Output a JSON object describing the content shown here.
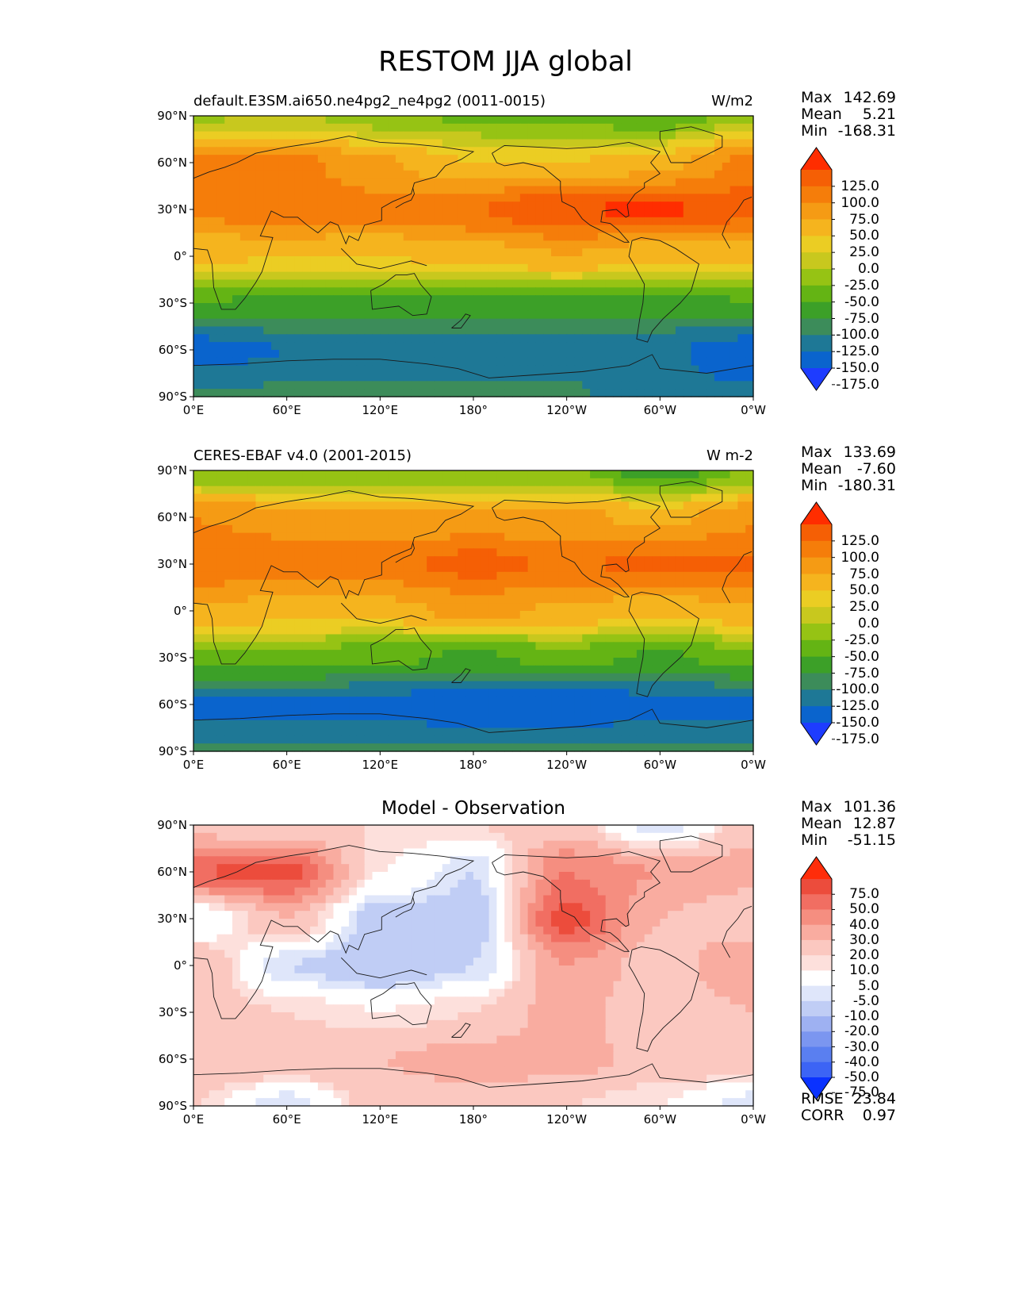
{
  "figure": {
    "title": "RESTOM JJA global"
  },
  "colors": {
    "absolute_levels": [
      "#1e3cff",
      "#0a64cd",
      "#1e7896",
      "#3c8c5a",
      "#3ca028",
      "#64b414",
      "#96c314",
      "#c8c81e",
      "#ebcd23",
      "#f5b41e",
      "#f59b14",
      "#f57d0a",
      "#f55f05",
      "#ff2d00"
    ],
    "diff_levels": [
      "#0a32ff",
      "#3c64f5",
      "#5a7ff0",
      "#7b96f0",
      "#9eb1f2",
      "#c0cdf5",
      "#dfe6fa",
      "#ffffff",
      "#fde0dc",
      "#fbc8c0",
      "#f9aca0",
      "#f58e80",
      "#f16e62",
      "#ec4c3c",
      "#ff2d0a"
    ]
  },
  "panels": [
    {
      "left_title": "default.E3SM.ai650.ne4pg2_ne4pg2 (0011-0015)",
      "right_title": "W/m2",
      "center_title": "",
      "stats": [
        {
          "label": "Max",
          "value": "142.69"
        },
        {
          "label": "Mean",
          "value": "5.21"
        },
        {
          "label": "Min",
          "value": "-168.31"
        }
      ],
      "footer_stats": [],
      "colorbar_ticks": [
        "125.0",
        "100.0",
        "75.0",
        "50.0",
        "25.0",
        "0.0",
        "-25.0",
        "-50.0",
        "-75.0",
        "-100.0",
        "-125.0",
        "-150.0",
        "-175.0"
      ]
    },
    {
      "left_title": "CERES-EBAF v4.0 (2001-2015)",
      "right_title": "W m-2",
      "center_title": "",
      "stats": [
        {
          "label": "Max",
          "value": "133.69"
        },
        {
          "label": "Mean",
          "value": "-7.60"
        },
        {
          "label": "Min",
          "value": "-180.31"
        }
      ],
      "footer_stats": [],
      "colorbar_ticks": [
        "125.0",
        "100.0",
        "75.0",
        "50.0",
        "25.0",
        "0.0",
        "-25.0",
        "-50.0",
        "-75.0",
        "-100.0",
        "-125.0",
        "-150.0",
        "-175.0"
      ]
    },
    {
      "left_title": "",
      "right_title": "",
      "center_title": "Model - Observation",
      "stats": [
        {
          "label": "Max",
          "value": "101.36"
        },
        {
          "label": "Mean",
          "value": "12.87"
        },
        {
          "label": "Min",
          "value": "-51.15"
        }
      ],
      "footer_stats": [
        {
          "label": "RMSE",
          "value": "23.84"
        },
        {
          "label": "CORR",
          "value": "0.97"
        }
      ],
      "colorbar_ticks": [
        "75.0",
        "50.0",
        "40.0",
        "30.0",
        "20.0",
        "10.0",
        "5.0",
        "-5.0",
        "-10.0",
        "-20.0",
        "-30.0",
        "-40.0",
        "-50.0",
        "-75.0"
      ]
    }
  ],
  "axes": {
    "x_ticks": [
      "0°E",
      "60°E",
      "120°E",
      "180°",
      "120°W",
      "60°W",
      "0°W"
    ],
    "y_ticks": [
      "90°N",
      "60°N",
      "30°N",
      "0°",
      "30°S",
      "60°S",
      "90°S"
    ]
  },
  "chart_data": [
    {
      "type": "heatmap",
      "title": "default.E3SM.ai650.ne4pg2_ne4pg2 (0011-0015)",
      "units": "W/m2",
      "xlim": [
        0,
        360
      ],
      "ylim": [
        -90,
        90
      ],
      "x": [
        0,
        60,
        120,
        180,
        240,
        300,
        360
      ],
      "y": [
        90,
        60,
        30,
        0,
        -30,
        -60,
        -90
      ],
      "z": [
        [
          -30,
          -20,
          -40,
          -55,
          -60,
          -70,
          -30
        ],
        [
          85,
          85,
          55,
          25,
          25,
          40,
          85
        ],
        [
          80,
          95,
          85,
          100,
          125,
          130,
          110
        ],
        [
          30,
          25,
          25,
          35,
          50,
          30,
          30
        ],
        [
          -75,
          -80,
          -90,
          -90,
          -80,
          -90,
          -75
        ],
        [
          -165,
          -150,
          -145,
          -145,
          -140,
          -145,
          -165
        ],
        [
          -120,
          -120,
          -120,
          -120,
          -120,
          -145,
          -145
        ]
      ],
      "stats": {
        "max": 142.69,
        "mean": 5.21,
        "min": -168.31
      },
      "colorbar_levels": [
        -175,
        -150,
        -125,
        -100,
        -75,
        -50,
        -25,
        0,
        25,
        50,
        75,
        100,
        125
      ],
      "grid": false
    },
    {
      "type": "heatmap",
      "title": "CERES-EBAF v4.0 (2001-2015)",
      "units": "W m-2",
      "xlim": [
        0,
        360
      ],
      "ylim": [
        -90,
        90
      ],
      "x": [
        0,
        60,
        120,
        180,
        240,
        300,
        360
      ],
      "y": [
        90,
        60,
        30,
        0,
        -30,
        -60,
        -90
      ],
      "z": [
        [
          -45,
          -45,
          -45,
          -45,
          -45,
          -95,
          -45
        ],
        [
          75,
          65,
          60,
          55,
          60,
          40,
          70
        ],
        [
          95,
          90,
          90,
          110,
          95,
          110,
          105
        ],
        [
          45,
          40,
          40,
          60,
          45,
          35,
          45
        ],
        [
          -60,
          -60,
          -70,
          -80,
          -65,
          -80,
          -60
        ],
        [
          -160,
          -160,
          -160,
          -175,
          -175,
          -160,
          -160
        ],
        [
          -120,
          -120,
          -120,
          -120,
          -120,
          -120,
          -120
        ]
      ],
      "stats": {
        "max": 133.69,
        "mean": -7.6,
        "min": -180.31
      },
      "colorbar_levels": [
        -175,
        -150,
        -125,
        -100,
        -75,
        -50,
        -25,
        0,
        25,
        50,
        75,
        100,
        125
      ],
      "grid": false
    },
    {
      "type": "heatmap",
      "title": "Model - Observation",
      "xlim": [
        0,
        360
      ],
      "ylim": [
        -90,
        90
      ],
      "x": [
        0,
        60,
        120,
        180,
        240,
        300,
        360
      ],
      "y": [
        90,
        60,
        30,
        0,
        -30,
        -60,
        -90
      ],
      "z": [
        [
          15,
          10,
          10,
          10,
          15,
          -10,
          15
        ],
        [
          50,
          55,
          5,
          -10,
          40,
          30,
          25
        ],
        [
          -5,
          20,
          -15,
          -15,
          55,
          20,
          10
        ],
        [
          20,
          -10,
          -20,
          -10,
          30,
          15,
          30
        ],
        [
          15,
          10,
          5,
          10,
          25,
          10,
          20
        ],
        [
          20,
          20,
          20,
          25,
          25,
          15,
          20
        ],
        [
          10,
          -10,
          15,
          15,
          10,
          5,
          -10
        ]
      ],
      "stats": {
        "max": 101.36,
        "mean": 12.87,
        "min": -51.15,
        "rmse": 23.84,
        "corr": 0.97
      },
      "colorbar_levels": [
        -75,
        -50,
        -40,
        -30,
        -20,
        -10,
        -5,
        5,
        10,
        20,
        30,
        40,
        50,
        75
      ],
      "grid": false
    }
  ]
}
